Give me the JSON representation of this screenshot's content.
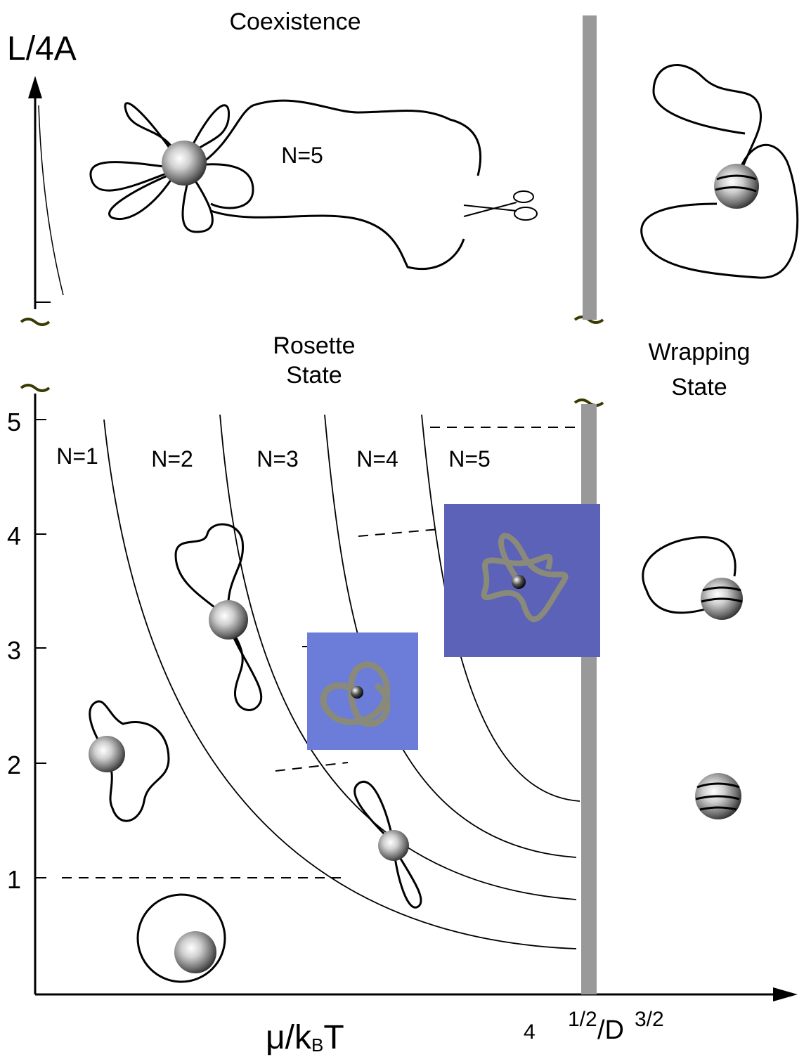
{
  "axes": {
    "y_label": "L/4A",
    "x_label": "μ/k",
    "x_label_subscript": "B",
    "x_label_T": "T",
    "x_formula_4": "4",
    "x_formula_half": "1/2",
    "x_formula_D": "/D",
    "x_formula_three_halves": "3/2",
    "y_ticks": [
      "5",
      "4",
      "3",
      "2",
      "1"
    ]
  },
  "labels": {
    "coexistence": "Coexistence",
    "top_n5": "N=5",
    "rosette_line1": "Rosette",
    "rosette_line2": "State",
    "wrapping_line1": "Wrapping",
    "wrapping_line2": "State"
  },
  "regions": [
    "N=1",
    "N=2",
    "N=3",
    "N=4",
    "N=5"
  ],
  "colors": {
    "boundary_bar": "#999999",
    "knot_box_light": "#6b7dd8",
    "knot_box_dark": "#5c62b8",
    "squiggle": "#3a3a00"
  }
}
